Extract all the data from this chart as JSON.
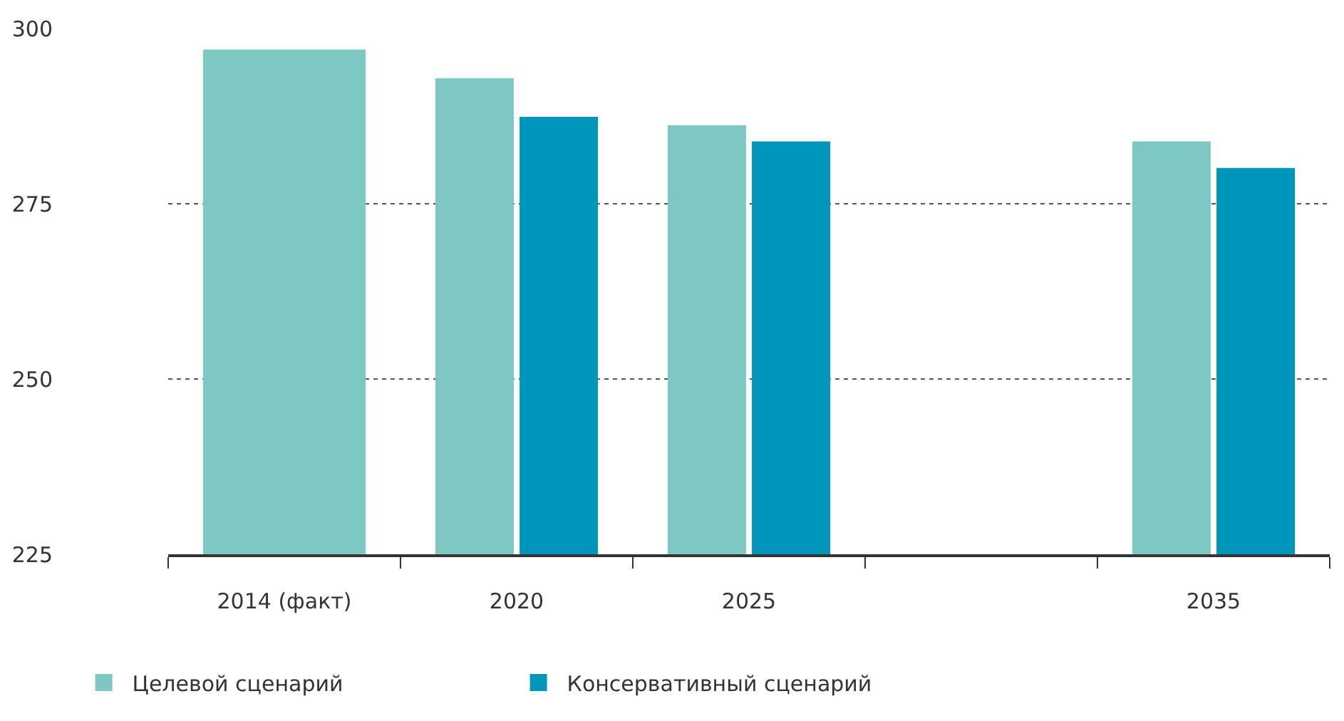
{
  "chart_data": {
    "type": "bar",
    "categories": [
      "2014 (факт)",
      "2020",
      "2025",
      null,
      "2035"
    ],
    "series": [
      {
        "name": "Целевой сценарий",
        "color": "#7ec8c4",
        "values": [
          297,
          292.9,
          286.2,
          null,
          283.9
        ]
      },
      {
        "name": "Консервативный сценарий",
        "color": "#0096bb",
        "values": [
          null,
          287.4,
          283.9,
          null,
          280.1
        ]
      }
    ],
    "ylim": [
      225,
      300
    ],
    "yticks": [
      225,
      250,
      275,
      300
    ],
    "grid": "y",
    "legend": "bottom left"
  }
}
